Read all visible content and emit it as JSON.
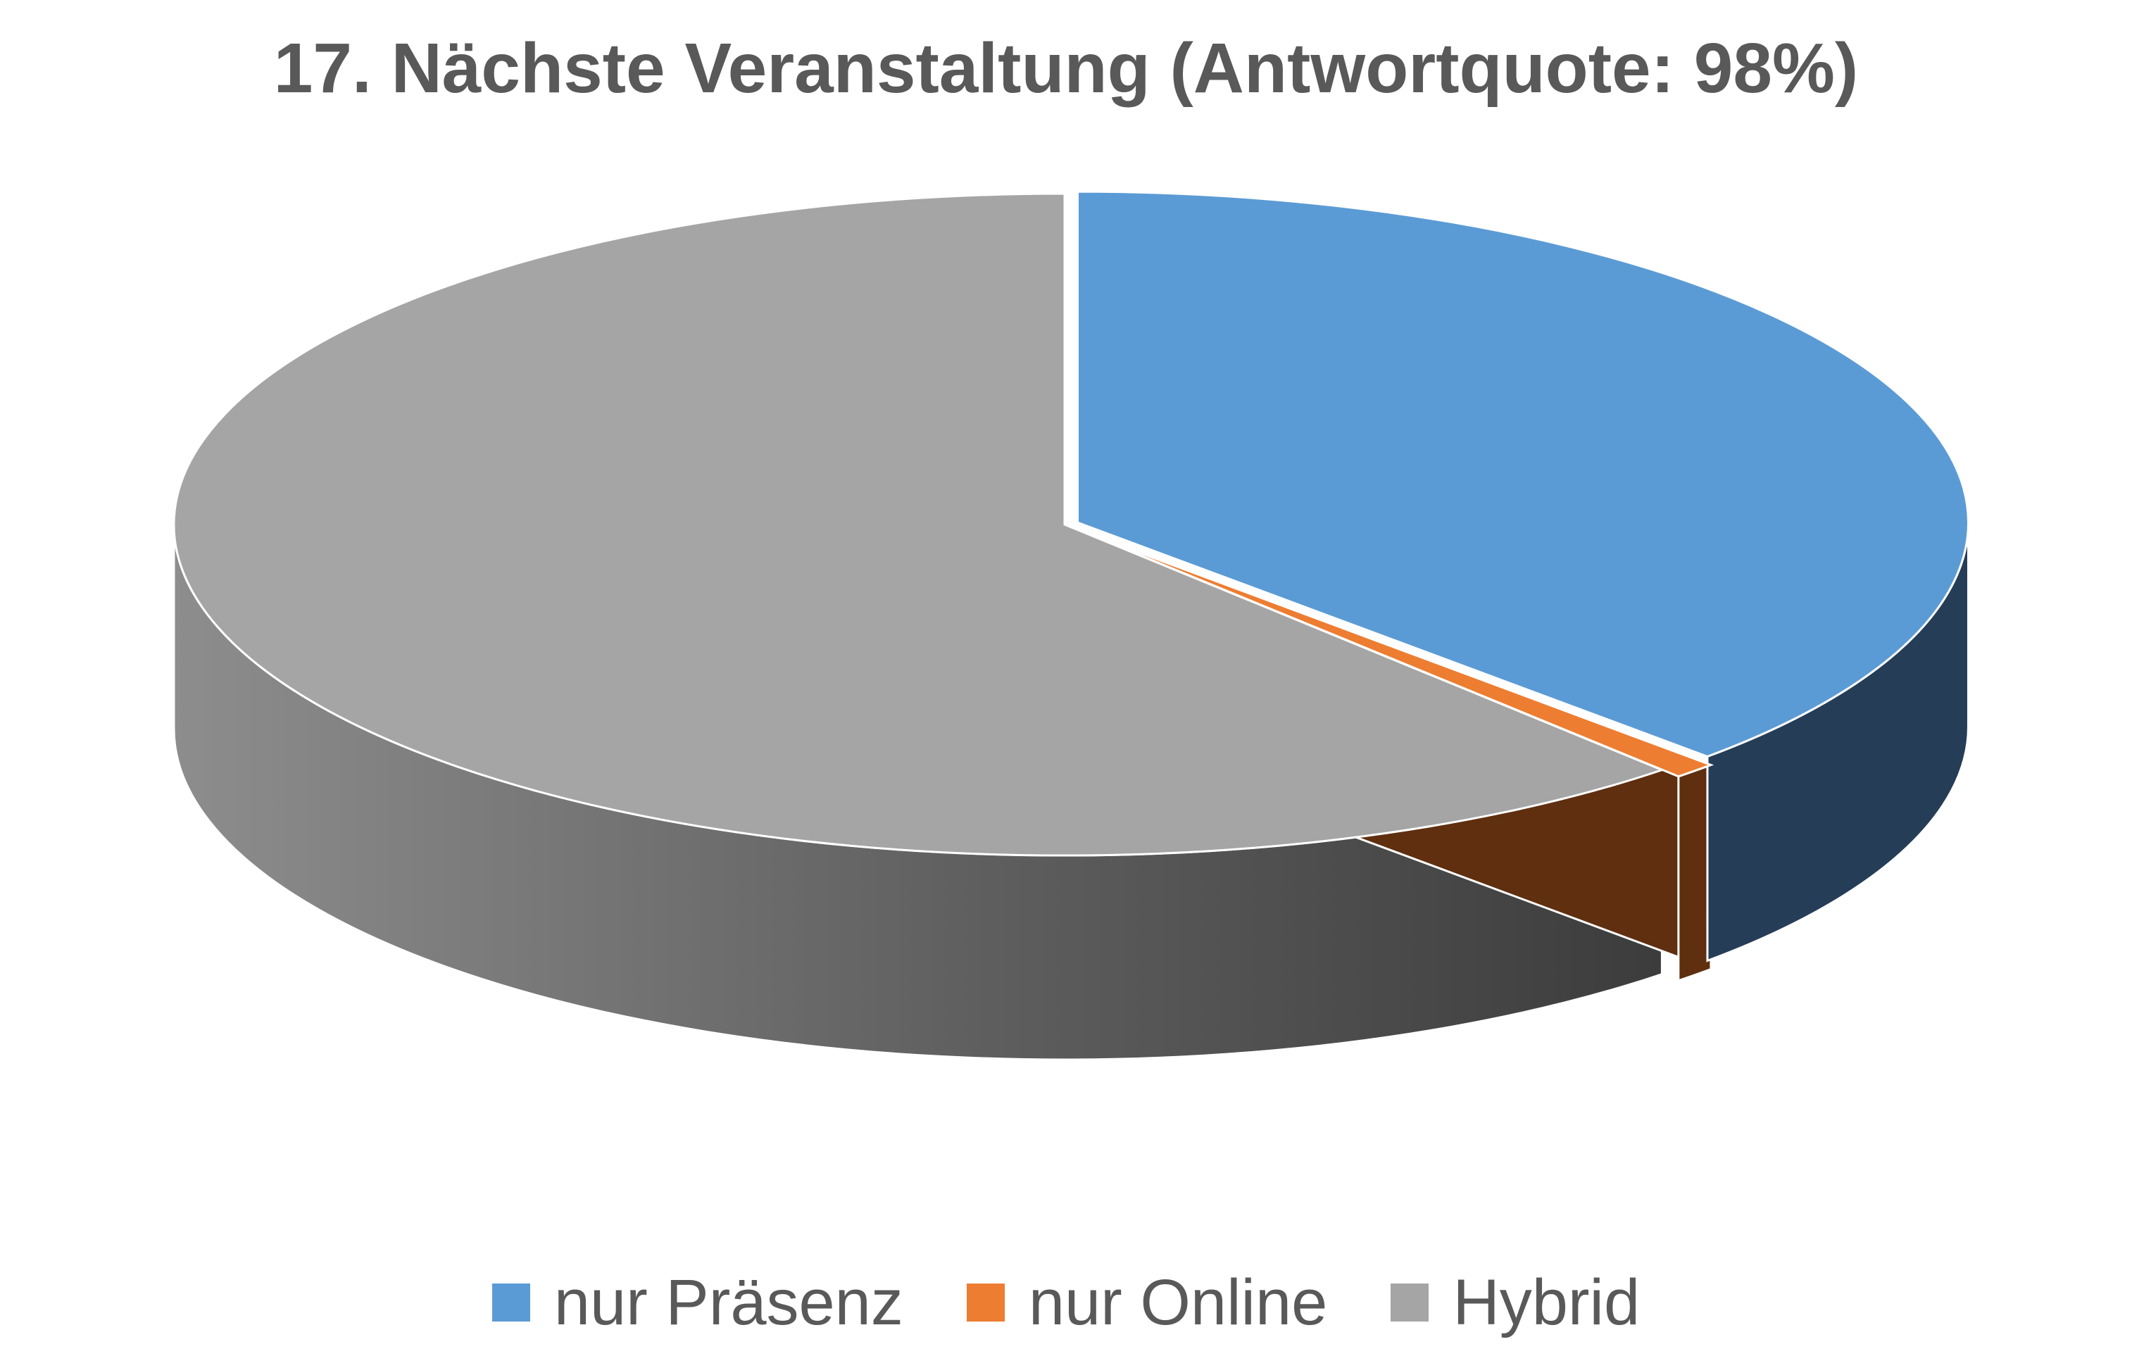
{
  "chart_data": {
    "type": "pie",
    "title": "17. Nächste Veranstaltung (Antwortquote: 98%)",
    "categories": [
      "nur Präsenz",
      "nur Online",
      "Hybrid"
    ],
    "values": [
      37.5,
      0.8,
      61.7
    ],
    "unit": "%",
    "style": "3d-exploded",
    "legend_position": "bottom",
    "colors": [
      "#5b9bd5",
      "#ed7d31",
      "#a5a5a5"
    ],
    "side_colors": [
      "#253d57",
      "#5f2f10",
      "#4a4a4a"
    ]
  }
}
